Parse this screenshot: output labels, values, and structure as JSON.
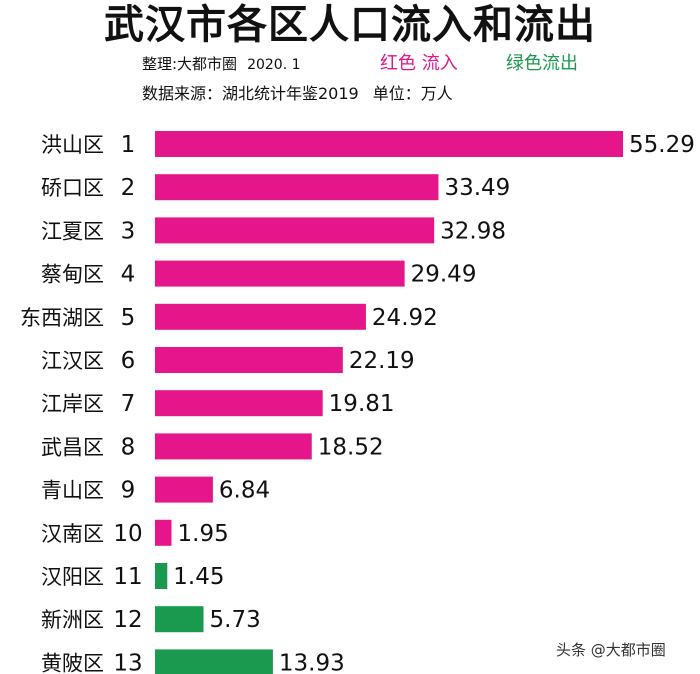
{
  "title": "武汉市各区人口流入和流出",
  "credit": "整理:大都市圈",
  "date": "2020. 1",
  "legend_inflow": "红色 流入",
  "legend_outflow": "绿色流出",
  "source": "数据来源：湖北统计年鉴2019",
  "unit": "单位：万人",
  "watermark": "头条 @大都市圈",
  "colors": {
    "inflow": "#e4168a",
    "outflow": "#1a9a4e"
  },
  "chart_data": {
    "type": "bar",
    "orientation": "horizontal",
    "categories": [
      "洪山区",
      "硚口区",
      "江夏区",
      "蔡甸区",
      "东西湖区",
      "江汉区",
      "江岸区",
      "武昌区",
      "青山区",
      "汉南区",
      "汉阳区",
      "新洲区",
      "黄陂区"
    ],
    "ranks": [
      "1",
      "2",
      "3",
      "4",
      "5",
      "6",
      "7",
      "8",
      "9",
      "10",
      "11",
      "12",
      "13"
    ],
    "values": [
      55.29,
      33.49,
      32.98,
      29.49,
      24.92,
      22.19,
      19.81,
      18.52,
      6.84,
      1.95,
      1.45,
      5.73,
      13.93
    ],
    "value_labels": [
      "55.29",
      "33.49",
      "32.98",
      "29.49",
      "24.92",
      "22.19",
      "19.81",
      "18.52",
      "6.84",
      "1.95",
      "1.45",
      "5.73",
      "13.93"
    ],
    "direction": [
      "inflow",
      "inflow",
      "inflow",
      "inflow",
      "inflow",
      "inflow",
      "inflow",
      "inflow",
      "inflow",
      "inflow",
      "outflow",
      "outflow",
      "outflow"
    ],
    "xlim": [
      0,
      55.29
    ],
    "grid": false,
    "legend": "top-right"
  }
}
